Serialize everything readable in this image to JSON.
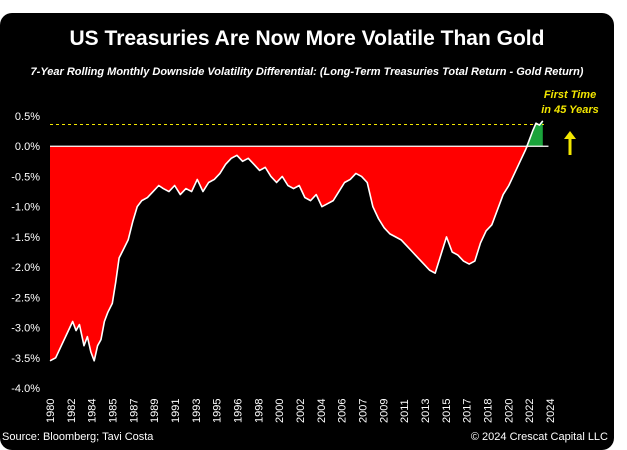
{
  "chart_data": {
    "type": "area",
    "title": "US Treasuries Are Now More Volatile Than Gold",
    "subtitle": "7-Year Rolling Monthly Downside Volatility Differential: (Long-Term Treasuries Total Return - Gold Return)",
    "xlabel": "",
    "ylabel": "",
    "x_tick_labels": [
      "1980",
      "1982",
      "1984",
      "1985",
      "1987",
      "1989",
      "1991",
      "1993",
      "1995",
      "1996",
      "1998",
      "2000",
      "2002",
      "2004",
      "2006",
      "2007",
      "2009",
      "2011",
      "2013",
      "2015",
      "2017",
      "2018",
      "2020",
      "2022",
      "2024"
    ],
    "y_tick_labels": [
      "0.5%",
      "0.0%",
      "-0.5%",
      "-1.0%",
      "-1.5%",
      "-2.0%",
      "-2.5%",
      "-3.0%",
      "-3.5%",
      "-4.0%"
    ],
    "xlim": [
      1980,
      2024.4
    ],
    "ylim": [
      -4.0,
      0.5
    ],
    "x": [
      1980.0,
      1980.5,
      1981.0,
      1981.5,
      1982.0,
      1982.3,
      1982.6,
      1983.0,
      1983.3,
      1983.6,
      1983.9,
      1984.2,
      1984.5,
      1984.8,
      1985.1,
      1985.5,
      1985.8,
      1986.1,
      1986.5,
      1986.9,
      1987.3,
      1987.7,
      1988.1,
      1988.6,
      1989.1,
      1989.6,
      1990.0,
      1990.5,
      1991.0,
      1991.5,
      1992.0,
      1992.5,
      1993.0,
      1993.5,
      1994.0,
      1994.5,
      1995.0,
      1995.5,
      1996.0,
      1996.5,
      1997.0,
      1997.5,
      1998.0,
      1998.5,
      1999.0,
      1999.5,
      2000.0,
      2000.5,
      2001.0,
      2001.5,
      2002.0,
      2002.5,
      2003.0,
      2003.5,
      2004.0,
      2004.5,
      2005.0,
      2005.5,
      2006.0,
      2006.5,
      2007.0,
      2007.5,
      2008.0,
      2008.5,
      2009.0,
      2009.5,
      2010.0,
      2010.5,
      2011.0,
      2011.5,
      2012.0,
      2012.5,
      2013.0,
      2013.5,
      2014.0,
      2014.5,
      2015.0,
      2015.5,
      2016.0,
      2016.5,
      2017.0,
      2017.5,
      2018.0,
      2018.5,
      2019.0,
      2019.5,
      2020.0,
      2020.5,
      2021.0,
      2021.5,
      2022.0,
      2022.3,
      2022.6,
      2022.9,
      2023.2,
      2023.5
    ],
    "values": [
      -3.55,
      -3.5,
      -3.3,
      -3.1,
      -2.9,
      -3.05,
      -2.95,
      -3.3,
      -3.15,
      -3.4,
      -3.55,
      -3.3,
      -3.2,
      -2.9,
      -2.75,
      -2.6,
      -2.25,
      -1.85,
      -1.7,
      -1.55,
      -1.25,
      -1.0,
      -0.9,
      -0.85,
      -0.75,
      -0.65,
      -0.7,
      -0.75,
      -0.65,
      -0.8,
      -0.7,
      -0.75,
      -0.55,
      -0.75,
      -0.6,
      -0.55,
      -0.45,
      -0.3,
      -0.2,
      -0.15,
      -0.25,
      -0.2,
      -0.3,
      -0.4,
      -0.35,
      -0.5,
      -0.6,
      -0.5,
      -0.65,
      -0.7,
      -0.65,
      -0.85,
      -0.9,
      -0.8,
      -1.0,
      -0.95,
      -0.9,
      -0.75,
      -0.6,
      -0.55,
      -0.45,
      -0.5,
      -0.6,
      -1.0,
      -1.2,
      -1.35,
      -1.45,
      -1.5,
      -1.55,
      -1.65,
      -1.75,
      -1.85,
      -1.95,
      -2.05,
      -2.1,
      -1.8,
      -1.5,
      -1.75,
      -1.8,
      -1.9,
      -1.95,
      -1.9,
      -1.6,
      -1.4,
      -1.3,
      -1.05,
      -0.8,
      -0.65,
      -0.45,
      -0.25,
      -0.05,
      0.1,
      0.25,
      0.38,
      0.35,
      0.42
    ],
    "fill_colors": {
      "negative": "#ff0000",
      "positive": "#1aa33b"
    },
    "line_color": "#ffffff",
    "reference_level": 0.36,
    "annotation": {
      "text_line1": "First Time",
      "text_line2": "in 45 Years",
      "color": "#f2e600",
      "arrow": "up"
    },
    "grid": false,
    "legend": "none"
  },
  "footer": {
    "source": "Source: Bloomberg; Tavi Costa",
    "copyright": "© 2024 Crescat Capital LLC"
  }
}
